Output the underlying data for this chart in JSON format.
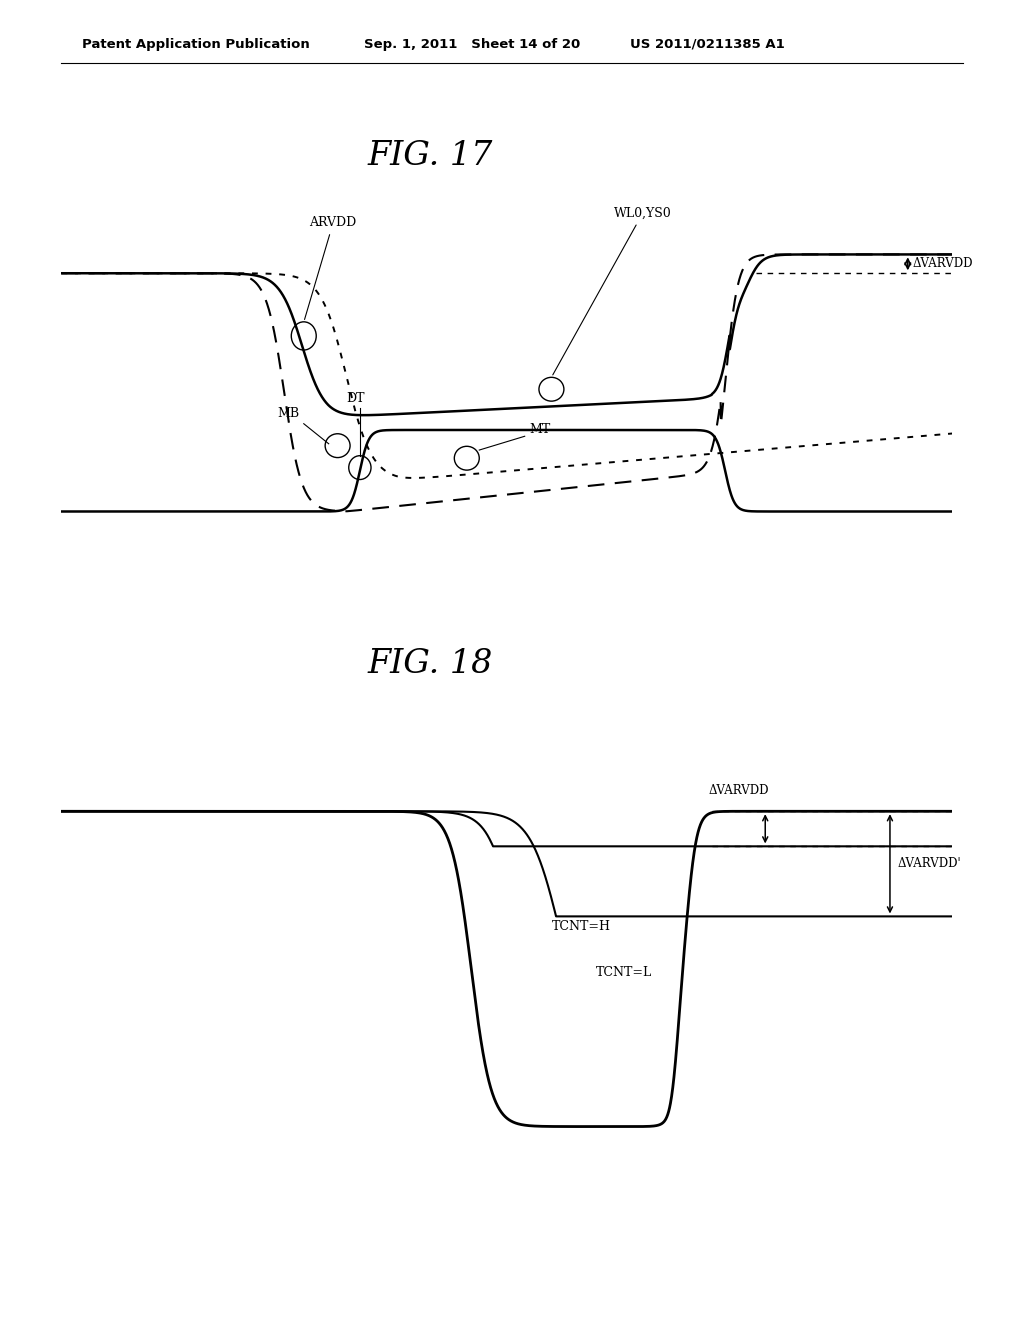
{
  "fig17_title": "FIG. 17",
  "fig18_title": "FIG. 18",
  "header_left": "Patent Application Publication",
  "header_mid": "Sep. 1, 2011   Sheet 14 of 20",
  "header_right": "US 2011/0211385 A1",
  "bg_color": "#ffffff",
  "line_color": "#000000"
}
